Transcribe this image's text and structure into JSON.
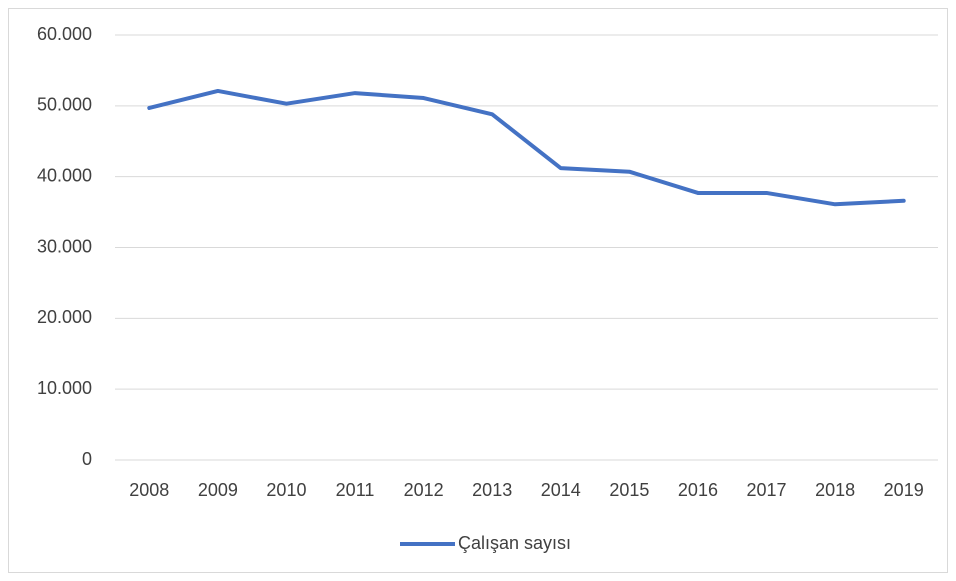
{
  "chart_data": {
    "type": "line",
    "categories": [
      "2008",
      "2009",
      "2010",
      "2011",
      "2012",
      "2013",
      "2014",
      "2015",
      "2016",
      "2017",
      "2018",
      "2019"
    ],
    "series": [
      {
        "name": "Çalışan sayısı",
        "color": "#4472c4",
        "values": [
          49700,
          52100,
          50300,
          51800,
          51100,
          48800,
          41200,
          40700,
          37700,
          37700,
          36100,
          36600
        ]
      }
    ],
    "ylim": [
      0,
      60000
    ],
    "yticks": [
      0,
      {
        "value": 10000,
        "label": "10.000"
      },
      {
        "value": 20000,
        "label": "20.000"
      },
      {
        "value": 30000,
        "label": "30.000"
      },
      {
        "value": 40000,
        "label": "40.000"
      },
      {
        "value": 50000,
        "label": "50.000"
      },
      {
        "value": 60000,
        "label": "60.000"
      }
    ],
    "grid": true,
    "legend": "bottom"
  }
}
